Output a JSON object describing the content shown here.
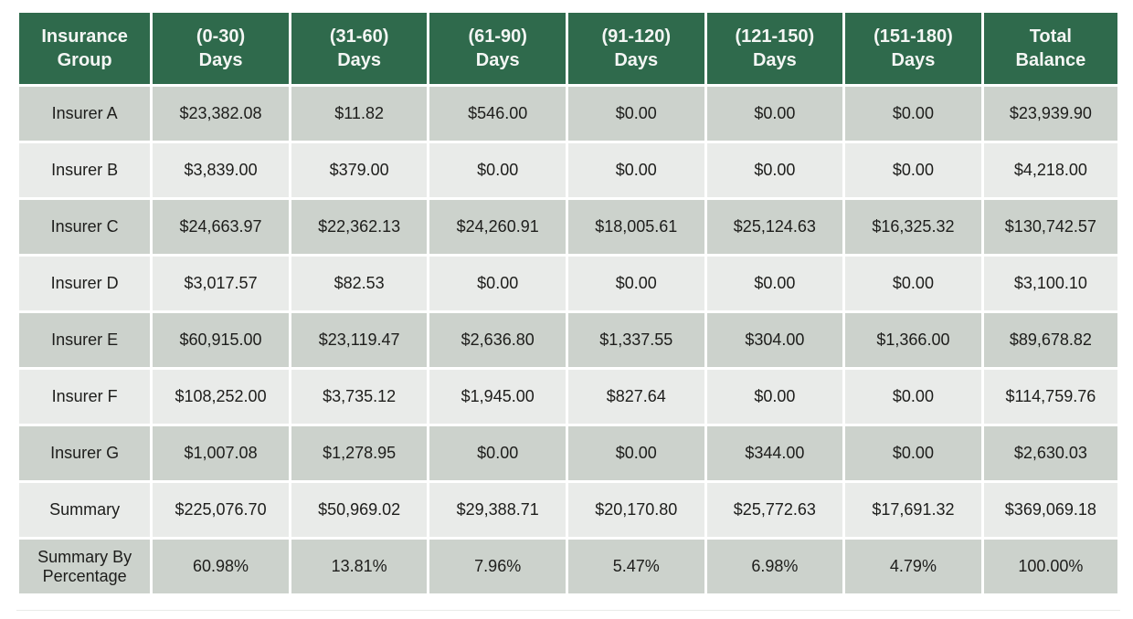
{
  "colors": {
    "header_bg": "#2F6A4C",
    "header_text": "#F4F6F4",
    "row_dark": "#CCD2CC",
    "row_light": "#E9EBE9",
    "body_text": "#1D1D1B",
    "grid_white": "#FFFFFF"
  },
  "chart_data": {
    "type": "table",
    "columns": [
      {
        "lines": [
          "Insurance",
          "Group"
        ]
      },
      {
        "lines": [
          "(0-30)",
          "Days"
        ]
      },
      {
        "lines": [
          "(31-60)",
          "Days"
        ]
      },
      {
        "lines": [
          "(61-90)",
          "Days"
        ]
      },
      {
        "lines": [
          "(91-120)",
          "Days"
        ]
      },
      {
        "lines": [
          "(121-150)",
          "Days"
        ]
      },
      {
        "lines": [
          "(151-180)",
          "Days"
        ]
      },
      {
        "lines": [
          "Total",
          "Balance"
        ]
      }
    ],
    "rows": [
      {
        "label": "Insurer A",
        "values": [
          "$23,382.08",
          "$11.82",
          "$546.00",
          "$0.00",
          "$0.00",
          "$0.00",
          "$23,939.90"
        ]
      },
      {
        "label": "Insurer B",
        "values": [
          "$3,839.00",
          "$379.00",
          "$0.00",
          "$0.00",
          "$0.00",
          "$0.00",
          "$4,218.00"
        ]
      },
      {
        "label": "Insurer C",
        "values": [
          "$24,663.97",
          "$22,362.13",
          "$24,260.91",
          "$18,005.61",
          "$25,124.63",
          "$16,325.32",
          "$130,742.57"
        ]
      },
      {
        "label": "Insurer D",
        "values": [
          "$3,017.57",
          "$82.53",
          "$0.00",
          "$0.00",
          "$0.00",
          "$0.00",
          "$3,100.10"
        ]
      },
      {
        "label": "Insurer E",
        "values": [
          "$60,915.00",
          "$23,119.47",
          "$2,636.80",
          "$1,337.55",
          "$304.00",
          "$1,366.00",
          "$89,678.82"
        ]
      },
      {
        "label": "Insurer F",
        "values": [
          "$108,252.00",
          "$3,735.12",
          "$1,945.00",
          "$827.64",
          "$0.00",
          "$0.00",
          "$114,759.76"
        ]
      },
      {
        "label": "Insurer G",
        "values": [
          "$1,007.08",
          "$1,278.95",
          "$0.00",
          "$0.00",
          "$344.00",
          "$0.00",
          "$2,630.03"
        ]
      },
      {
        "label": "Summary",
        "values": [
          "$225,076.70",
          "$50,969.02",
          "$29,388.71",
          "$20,170.80",
          "$25,772.63",
          "$17,691.32",
          "$369,069.18"
        ]
      },
      {
        "label": "Summary By Percentage",
        "values": [
          "60.98%",
          "13.81%",
          "7.96%",
          "5.47%",
          "6.98%",
          "4.79%",
          "100.00%"
        ]
      }
    ]
  }
}
